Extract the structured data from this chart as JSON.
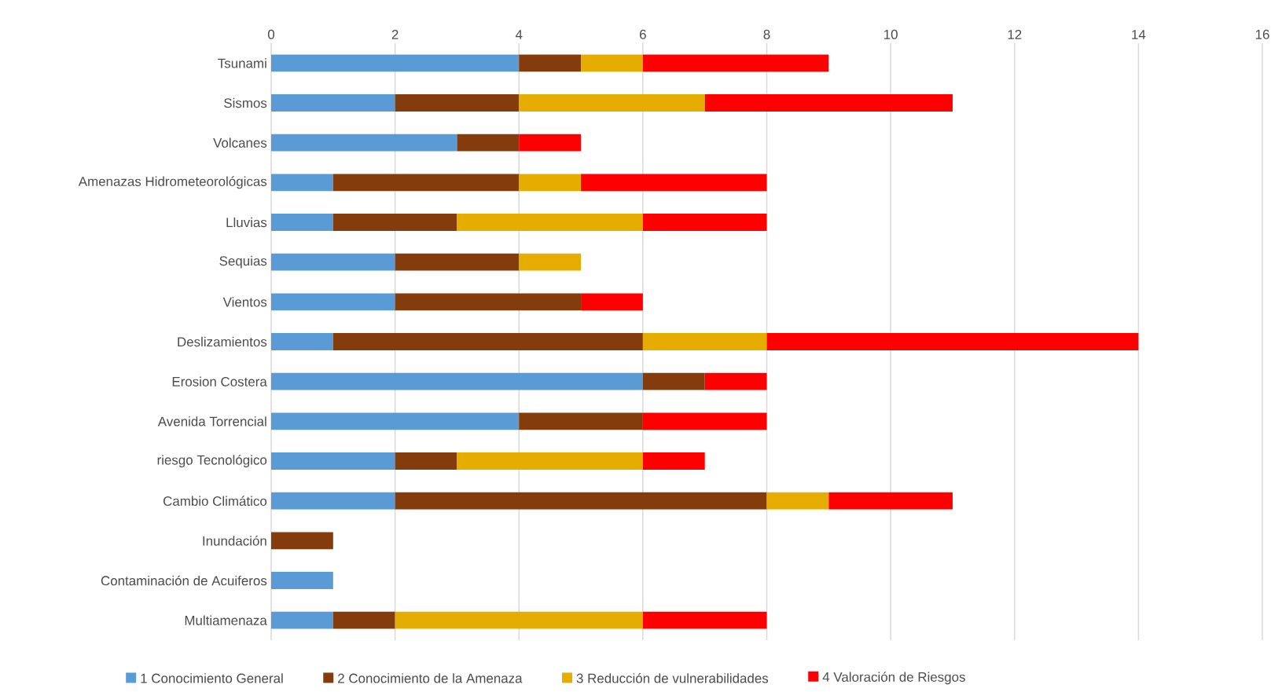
{
  "chart_data": {
    "type": "bar",
    "orientation": "horizontal",
    "stacked": true,
    "categories": [
      "Tsunami",
      "Sismos",
      "Volcanes",
      "Amenazas Hidrometeorológicas",
      "Lluvias",
      "Sequias",
      "Vientos",
      "Deslizamientos",
      "Erosion Costera",
      "Avenida Torrencial",
      "riesgo Tecnológico",
      "Cambio Climático",
      "Inundación",
      "Contaminación de Acuiferos",
      "Multiamenaza"
    ],
    "series": [
      {
        "name": "1 Conocimiento General",
        "color": "#5b9bd5",
        "values": [
          4,
          2,
          3,
          1,
          1,
          2,
          2,
          1,
          6,
          4,
          2,
          2,
          null,
          1,
          1
        ]
      },
      {
        "name": "2 Conocimiento de la Amenaza",
        "color": "#843c0c",
        "values": [
          1,
          2,
          1,
          3,
          2,
          2,
          3,
          5,
          1,
          2,
          1,
          6,
          1,
          null,
          1
        ]
      },
      {
        "name": "3 Reducción de vulnerabilidades",
        "color": "#e5ad00",
        "values": [
          1,
          3,
          null,
          1,
          3,
          1,
          null,
          2,
          null,
          null,
          3,
          1,
          null,
          null,
          4
        ]
      },
      {
        "name": "4 Valoración de Riesgos",
        "color": "#ff0000",
        "values": [
          3,
          4,
          1,
          3,
          2,
          null,
          1,
          6,
          1,
          2,
          1,
          2,
          null,
          null,
          2
        ]
      }
    ],
    "xlim": [
      0,
      16
    ],
    "xticks": [
      0,
      2,
      4,
      6,
      8,
      10,
      12,
      14,
      16
    ],
    "grid": "x",
    "legend": "bottom"
  }
}
